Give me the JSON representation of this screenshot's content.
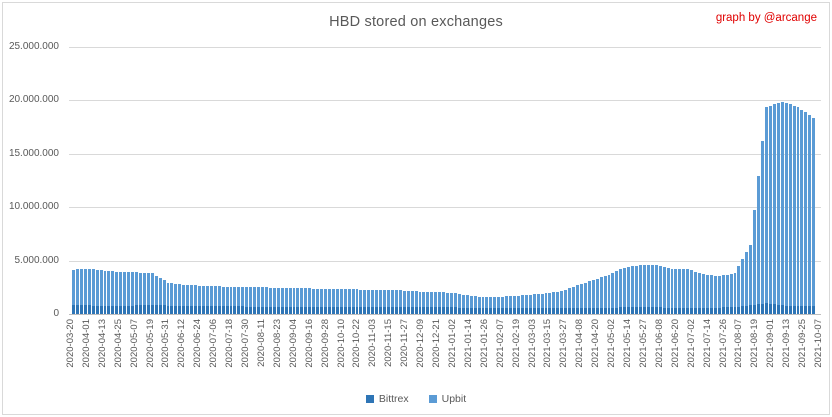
{
  "credit": "graph by @arcange",
  "colors": {
    "bittrex": "#2e75b6",
    "upbit": "#5b9bd5",
    "credit_red": "#e00000",
    "text_gray": "#595959",
    "gridline": "#d9d9d9",
    "axis_line": "#bfbfbf"
  },
  "chart_data": {
    "type": "bar",
    "stacked": true,
    "title": "HBD stored on exchanges",
    "unit": "HBD, values in millions",
    "grid": "horizontal",
    "legend_position": "bottom",
    "ylim": [
      0,
      25
    ],
    "y_ticks": [
      {
        "value": 0,
        "label": "0"
      },
      {
        "value": 5,
        "label": "5.000.000"
      },
      {
        "value": 10,
        "label": "10.000.000"
      },
      {
        "value": 15,
        "label": "15.000.000"
      },
      {
        "value": 20,
        "label": "20.000.000"
      },
      {
        "value": 25,
        "label": "25.000.000"
      }
    ],
    "bars_between_labels": 4,
    "categories": [
      "2020-03-20",
      "2020-04-01",
      "2020-04-13",
      "2020-04-25",
      "2020-05-07",
      "2020-05-19",
      "2020-05-31",
      "2020-06-12",
      "2020-06-24",
      "2020-07-06",
      "2020-07-18",
      "2020-07-30",
      "2020-08-11",
      "2020-08-23",
      "2020-09-04",
      "2020-09-16",
      "2020-09-28",
      "2020-10-10",
      "2020-10-22",
      "2020-11-03",
      "2020-11-15",
      "2020-11-27",
      "2020-12-09",
      "2020-12-21",
      "2021-01-02",
      "2021-01-14",
      "2021-01-26",
      "2021-02-07",
      "2021-02-19",
      "2021-03-03",
      "2021-03-15",
      "2021-03-27",
      "2021-04-08",
      "2021-04-20",
      "2021-05-02",
      "2021-05-14",
      "2021-05-27",
      "2021-06-08",
      "2021-06-20",
      "2021-07-02",
      "2021-07-14",
      "2021-07-26",
      "2021-08-07",
      "2021-08-19",
      "2021-09-01",
      "2021-09-13",
      "2021-09-25",
      "2021-10-07"
    ],
    "series": [
      {
        "name": "Bittrex",
        "color": "#2e75b6",
        "values": [
          0.8,
          0.8,
          0.78,
          0.78,
          0.8,
          0.85,
          0.78,
          0.75,
          0.75,
          0.72,
          0.72,
          0.7,
          0.7,
          0.7,
          0.68,
          0.68,
          0.68,
          0.65,
          0.65,
          0.65,
          0.7,
          0.65,
          0.65,
          0.62,
          0.62,
          0.6,
          0.6,
          0.58,
          0.58,
          0.58,
          0.6,
          0.6,
          0.6,
          0.6,
          0.6,
          0.62,
          0.62,
          0.62,
          0.6,
          0.6,
          0.6,
          0.6,
          0.65,
          0.8,
          1.0,
          0.8,
          0.75,
          0.75
        ]
      },
      {
        "name": "Upbit",
        "color": "#5b9bd5",
        "values": [
          3.35,
          3.45,
          3.27,
          3.17,
          3.1,
          2.95,
          2.17,
          2.0,
          1.9,
          1.88,
          1.83,
          1.85,
          1.8,
          1.75,
          1.72,
          1.72,
          1.67,
          1.65,
          1.65,
          1.6,
          1.55,
          1.55,
          1.45,
          1.43,
          1.38,
          1.15,
          1.0,
          1.02,
          1.12,
          1.22,
          1.35,
          1.55,
          2.1,
          2.6,
          3.1,
          3.73,
          3.98,
          3.93,
          3.65,
          3.6,
          3.15,
          2.95,
          3.15,
          5.7,
          18.4,
          19.05,
          18.65,
          17.6
        ]
      }
    ]
  }
}
